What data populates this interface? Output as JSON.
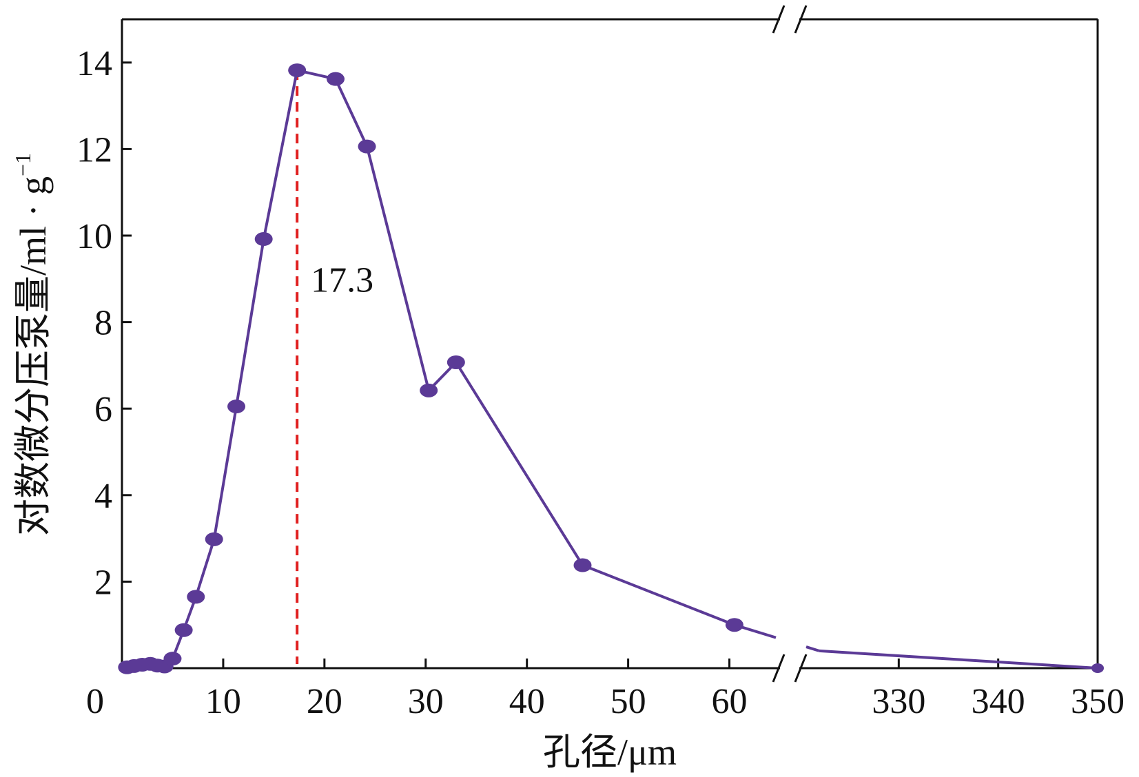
{
  "chart_data": {
    "type": "line",
    "xlabel": "孔径/μm",
    "ylabel": "对数微分压泵量/ml · g",
    "ylabel_sup": "−1",
    "ylim": [
      0,
      15
    ],
    "yticks": [
      2,
      4,
      6,
      8,
      10,
      12,
      14
    ],
    "x_origin_label": "0",
    "x_axis_break": true,
    "x_segments": [
      {
        "range": [
          0,
          65
        ],
        "ticks": [
          10,
          20,
          30,
          40,
          50,
          60
        ]
      },
      {
        "range": [
          320,
          350
        ],
        "ticks": [
          330,
          340,
          350
        ]
      }
    ],
    "series": [
      {
        "color": "#5b3a96",
        "marker_color": "#5b3a96",
        "points": [
          {
            "x": 0.5,
            "y": 0.02
          },
          {
            "x": 1.2,
            "y": 0.05
          },
          {
            "x": 2.0,
            "y": 0.08
          },
          {
            "x": 2.8,
            "y": 0.1
          },
          {
            "x": 3.5,
            "y": 0.06
          },
          {
            "x": 4.2,
            "y": 0.04
          },
          {
            "x": 5.0,
            "y": 0.22
          },
          {
            "x": 6.1,
            "y": 0.88
          },
          {
            "x": 7.3,
            "y": 1.65
          },
          {
            "x": 9.1,
            "y": 2.98
          },
          {
            "x": 11.3,
            "y": 6.05
          },
          {
            "x": 14.0,
            "y": 9.92
          },
          {
            "x": 17.3,
            "y": 13.82
          },
          {
            "x": 21.1,
            "y": 13.62
          },
          {
            "x": 24.2,
            "y": 12.06
          },
          {
            "x": 30.3,
            "y": 6.42
          },
          {
            "x": 33.0,
            "y": 7.07
          },
          {
            "x": 45.5,
            "y": 2.38
          },
          {
            "x": 60.5,
            "y": 1.0
          },
          {
            "x": 322.0,
            "y": 0.4
          },
          {
            "x": 350.0,
            "y": 0.0
          }
        ]
      }
    ],
    "annotations": [
      {
        "text": "17.3",
        "x": 17.3,
        "color": "#e02020",
        "style": "dashed-vertical"
      }
    ]
  }
}
